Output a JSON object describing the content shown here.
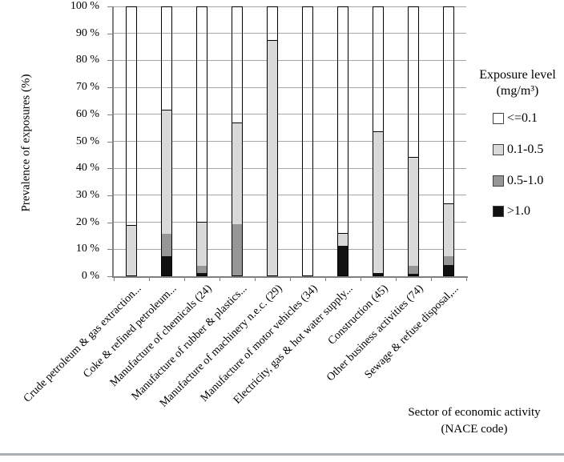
{
  "page": {
    "background": "#ffffff",
    "bottom_rule_color": "#a9afb5"
  },
  "chart_data": {
    "type": "bar",
    "stacked": true,
    "orientation": "vertical",
    "title": "",
    "ylabel": "Prevalence of exposures (%)",
    "xlabel_line1": "Sector of economic activity",
    "xlabel_line2": "(NACE code)",
    "ylim": [
      0,
      100
    ],
    "ytick_step": 10,
    "ytick_labels": [
      "0 %",
      "10 %",
      "20 %",
      "30 %",
      "40 %",
      "50 %",
      "60 %",
      "70 %",
      "80 %",
      "90 %",
      "100 %"
    ],
    "grid": true,
    "categories": [
      "Crude petroleum & gas extraction...",
      "Coke & refined petroleum...",
      "Manufacture of chemicals (24)",
      "Manufacture of rubber & plastics...",
      "Manufacture of machinery n.e.c. (29)",
      "Manufacture of motor vehicles (34)",
      "Electricity, gas & hot water supply...",
      "Construction (45)",
      "Other business activities (74)",
      "Sewage & refuse disposal,..."
    ],
    "series": [
      {
        "name": ">1.0",
        "color": "#111111",
        "transparent_fill": false,
        "values": [
          0,
          7,
          1,
          0,
          0,
          0,
          11,
          1,
          0.5,
          4
        ]
      },
      {
        "name": "0.5-1.0",
        "color": "#969696",
        "transparent_fill": false,
        "values": [
          0,
          8.5,
          2.5,
          19,
          0,
          0,
          0,
          0,
          3,
          3
        ]
      },
      {
        "name": "0.1-0.5",
        "color": "#d9d9d9",
        "transparent_fill": false,
        "values": [
          18.5,
          45.5,
          16,
          37.5,
          87,
          0,
          4.5,
          52,
          40,
          19.5
        ]
      },
      {
        "name": "<=0.1",
        "color": "#ffffff",
        "transparent_fill": true,
        "values": [
          81.5,
          39,
          80.5,
          43.5,
          13,
          100,
          84.5,
          47,
          56.5,
          73.5
        ]
      }
    ],
    "legend": {
      "position": "right",
      "title_line1": "Exposure level",
      "title_line2": "(mg/m³)",
      "items": [
        {
          "label": "<=0.1",
          "swatch_color": "#ffffff"
        },
        {
          "label": "0.1-0.5",
          "swatch_color": "#d9d9d9"
        },
        {
          "label": "0.5-1.0",
          "swatch_color": "#969696"
        },
        {
          "label": ">1.0",
          "swatch_color": "#111111"
        }
      ]
    }
  }
}
